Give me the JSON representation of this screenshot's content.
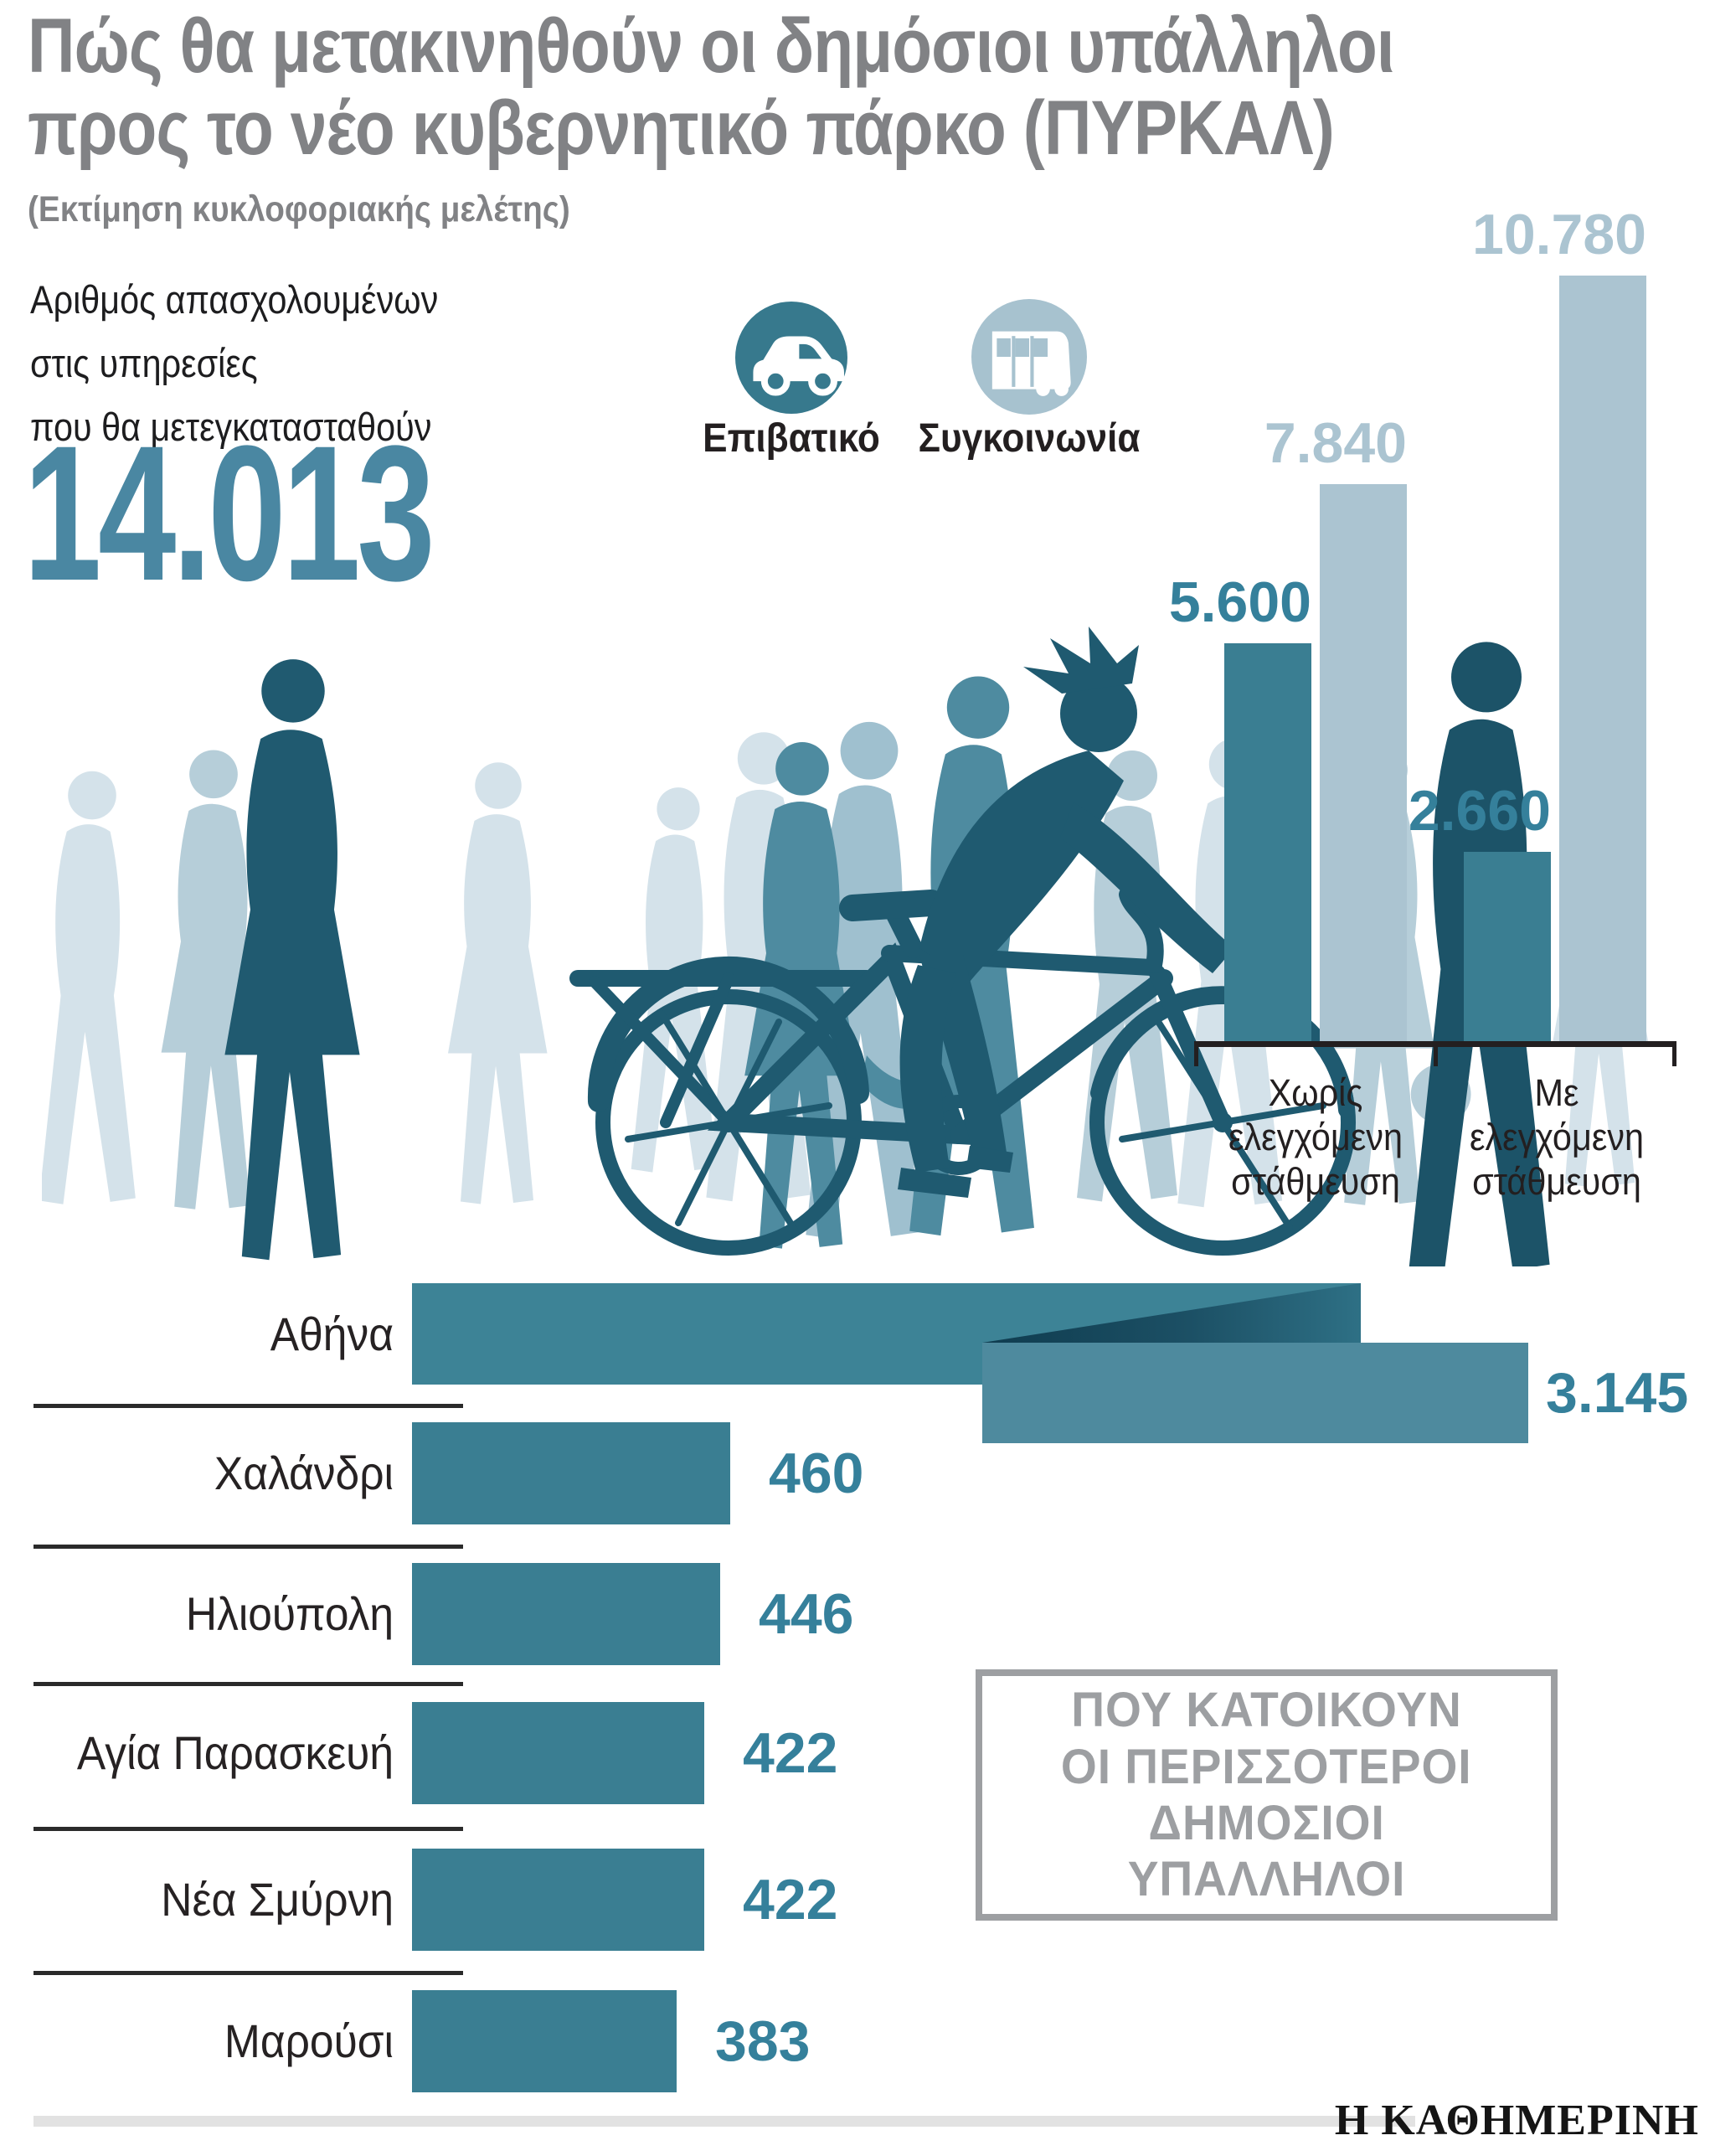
{
  "header": {
    "title_line1": "Πώς θα μετακινηθούν οι δημόσιοι υπάλληλοι",
    "title_line2": "προς το νέο κυβερνητικό πάρκο (ΠΥΡΚΑΛ)",
    "subtitle": "(Εκτίμηση κυκλοφοριακής μελέτης)"
  },
  "intro": {
    "line1": "Αριθμός απασχολουμένων",
    "line2": "στις υπηρεσίες",
    "line3": "που θα μετεγκατασταθούν",
    "total": "14.013"
  },
  "note_box": {
    "line1": "ΠΟΥ ΚΑΤΟΙΚΟΥΝ",
    "line2": "ΟΙ ΠΕΡΙΣΣΟΤΕΡΟΙ",
    "line3": "ΔΗΜΟΣΙΟΙ",
    "line4": "ΥΠΑΛΛΗΛΟΙ"
  },
  "footer": {
    "brand": "Η ΚΑΘΗΜΕΡΙΝΗ"
  },
  "colors": {
    "title_gray": "#818285",
    "teal_dark_bar": "#3a7e92",
    "teal_value_text": "#35809b",
    "light_blue_bar": "#abc4d1",
    "big_number_teal": "#4a87a2",
    "box_gray": "#9d9fa2",
    "car_circle": "#37798d",
    "bus_circle": "#a7c2cf"
  },
  "chart_data": [
    {
      "type": "bar",
      "title": "",
      "categories": [
        "Χωρίς ελεγχόμενη στάθμευση",
        "Με ελεγχόμενη στάθμευση"
      ],
      "series": [
        {
          "name": "Επιβατικό",
          "values": [
            5600,
            2660
          ],
          "labels": [
            "5.600",
            "2.660"
          ],
          "color": "#3a7e92"
        },
        {
          "name": "Συγκοινωνία",
          "values": [
            7840,
            10780
          ],
          "labels": [
            "7.840",
            "10.780"
          ],
          "color": "#abc4d1"
        }
      ],
      "xlabel": "",
      "ylabel": "",
      "ylim": [
        0,
        10780
      ],
      "grid": false,
      "legend_position": "top-left"
    },
    {
      "type": "bar",
      "orientation": "horizontal",
      "title": "ΠΟΥ ΚΑΤΟΙΚΟΥΝ ΟΙ ΠΕΡΙΣΣΟΤΕΡΟΙ ΔΗΜΟΣΙΟΙ ΥΠΑΛΛΗΛΟΙ",
      "categories": [
        "Αθήνα",
        "Χαλάνδρι",
        "Ηλιούπολη",
        "Αγία Παρασκευή",
        "Νέα Σμύρνη",
        "Μαρούσι"
      ],
      "values": [
        3145,
        460,
        446,
        422,
        422,
        383
      ],
      "labels": [
        "3.145",
        "460",
        "446",
        "422",
        "422",
        "383"
      ],
      "xlim": [
        0,
        500
      ],
      "grid": false
    }
  ]
}
